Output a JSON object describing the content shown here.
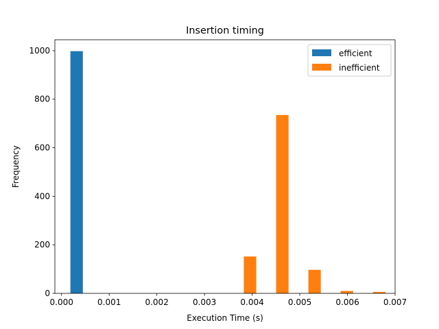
{
  "chart_data": {
    "type": "bar",
    "title": "Insertion timing",
    "xlabel": "Execution Time (s)",
    "ylabel": "Frequency",
    "xlim": [
      -0.00014,
      0.007
    ],
    "ylim": [
      0,
      1045
    ],
    "xticks": [
      0.0,
      0.001,
      0.002,
      0.003,
      0.004,
      0.005,
      0.006,
      0.007
    ],
    "xtick_labels": [
      "0.000",
      "0.001",
      "0.002",
      "0.003",
      "0.004",
      "0.005",
      "0.006",
      "0.007"
    ],
    "yticks": [
      0,
      200,
      400,
      600,
      800,
      1000
    ],
    "ytick_labels": [
      "0",
      "200",
      "400",
      "600",
      "800",
      "1000"
    ],
    "legend_position": "top-right",
    "series": [
      {
        "name": "efficient",
        "color": "#1f77b4",
        "bars": [
          {
            "x0": 0.000186,
            "x1": 0.000447,
            "value": 998
          }
        ]
      },
      {
        "name": "inefficient",
        "color": "#ff7f0e",
        "bars": [
          {
            "x0": 0.003825,
            "x1": 0.004086,
            "value": 152
          },
          {
            "x0": 0.004503,
            "x1": 0.004764,
            "value": 735
          },
          {
            "x0": 0.005181,
            "x1": 0.005441,
            "value": 97
          },
          {
            "x0": 0.005858,
            "x1": 0.006119,
            "value": 10
          },
          {
            "x0": 0.006536,
            "x1": 0.006797,
            "value": 6
          }
        ]
      }
    ]
  }
}
